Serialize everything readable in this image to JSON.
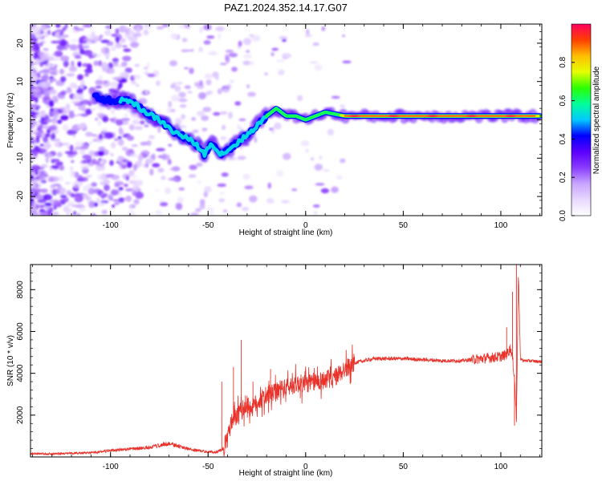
{
  "title": "PAZ1.2024.352.14.17.G07",
  "chart_data": [
    {
      "type": "heatmap",
      "title": "PAZ1.2024.352.14.17.G07",
      "xlabel": "Height of straight line (km)",
      "ylabel": "Frequency (Hz)",
      "xlim": [
        -141,
        121
      ],
      "ylim": [
        -25,
        25
      ],
      "x_ticks": [
        -100,
        -50,
        0,
        50,
        100
      ],
      "y_ticks": [
        -20,
        -10,
        0,
        10,
        20
      ],
      "colorbar": {
        "label": "Normalized spectral amplitude",
        "range": [
          0,
          1
        ],
        "ticks": [
          0.0,
          0.2,
          0.4,
          0.6,
          0.8
        ],
        "colormap": [
          "#ffffff",
          "#e8d8ff",
          "#c8a4ff",
          "#8a3cff",
          "#5a00ff",
          "#0000ff",
          "#00c8ff",
          "#00ff9a",
          "#2cff00",
          "#e6ff00",
          "#ffbf00",
          "#ff4000",
          "#ff0060"
        ]
      },
      "ridge": {
        "x": [
          -108,
          -100,
          -90,
          -82,
          -75,
          -68,
          -60,
          -55,
          -52,
          -48,
          -44,
          -40,
          -35,
          -30,
          -26,
          -20,
          -15,
          -10,
          -5,
          0,
          5,
          10,
          20,
          40,
          60,
          80,
          100,
          105,
          110,
          120
        ],
        "y": [
          6,
          5,
          5,
          2,
          0,
          -3,
          -5,
          -7,
          -9,
          -6,
          -9,
          -8,
          -6,
          -4,
          -2,
          1,
          3,
          1,
          1,
          0,
          1,
          2,
          1,
          1,
          1,
          1,
          1,
          1,
          1,
          1
        ]
      }
    },
    {
      "type": "line",
      "xlabel": "Height of straight line (km)",
      "ylabel": "SNR (10 * v/v)",
      "xlim": [
        -141,
        121
      ],
      "ylim": [
        0,
        9200
      ],
      "x_ticks": [
        -100,
        -50,
        0,
        50,
        100
      ],
      "y_ticks": [
        2000,
        4000,
        6000,
        8000
      ],
      "color": "#e8322a",
      "series": [
        {
          "x": [
            -141,
            -130,
            -120,
            -110,
            -100,
            -90,
            -80,
            -75,
            -70,
            -65,
            -60,
            -55,
            -50,
            -46,
            -42,
            -40,
            -38,
            -35,
            -32,
            -30,
            -28,
            -25,
            -22,
            -20,
            -15,
            -10,
            -5,
            0,
            5,
            10,
            15,
            20,
            25,
            30,
            35,
            40,
            50,
            60,
            70,
            80,
            90,
            95,
            100,
            103,
            105,
            106,
            107,
            108,
            109,
            110,
            112,
            115,
            121
          ],
          "y": [
            150,
            150,
            180,
            200,
            300,
            380,
            450,
            550,
            650,
            500,
            380,
            300,
            250,
            230,
            400,
            1000,
            1600,
            2000,
            2300,
            2500,
            2300,
            2600,
            2800,
            2900,
            3100,
            3300,
            3500,
            3500,
            3600,
            3700,
            3800,
            4200,
            4500,
            4600,
            4700,
            4700,
            4700,
            4650,
            4600,
            4600,
            4700,
            4750,
            4800,
            4900,
            5200,
            4700,
            3800,
            1800,
            8900,
            4700,
            4600,
            4600,
            4550
          ]
        }
      ],
      "peaks": [
        {
          "x": -33,
          "y": 5600
        },
        {
          "x": -43,
          "y": 3600
        },
        {
          "x": -37,
          "y": 4300
        },
        {
          "x": -27,
          "y": 3600
        },
        {
          "x": -18,
          "y": 4200
        },
        {
          "x": 103,
          "y": 6200
        },
        {
          "x": 106,
          "y": 7900
        },
        {
          "x": 108,
          "y": 9200
        },
        {
          "x": 107,
          "y": 1500
        }
      ]
    }
  ]
}
